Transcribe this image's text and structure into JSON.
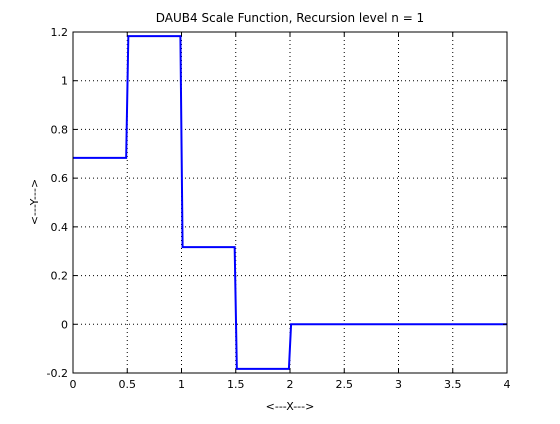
{
  "chart_data": {
    "type": "line",
    "title": "DAUB4 Scale Function, Recursion level n = 1",
    "xlabel": "<---X--->",
    "ylabel": "<---Y--->",
    "xlim": [
      0,
      4
    ],
    "ylim": [
      -0.2,
      1.2
    ],
    "x_ticks": [
      "0",
      "0.5",
      "1",
      "1.5",
      "2",
      "2.5",
      "3",
      "3.5",
      "4"
    ],
    "y_ticks": [
      "-0.2",
      "0",
      "0.2",
      "0.4",
      "0.6",
      "0.8",
      "1",
      "1.2"
    ],
    "grid": true,
    "line_color": "#0000ff",
    "series": [
      {
        "x": [
          0,
          0.49,
          0.51,
          0.99,
          1.01,
          1.49,
          1.51,
          1.99,
          2.01,
          4
        ],
        "y": [
          0.683,
          0.683,
          1.183,
          1.183,
          0.317,
          0.317,
          -0.183,
          -0.183,
          0,
          0
        ]
      }
    ]
  }
}
